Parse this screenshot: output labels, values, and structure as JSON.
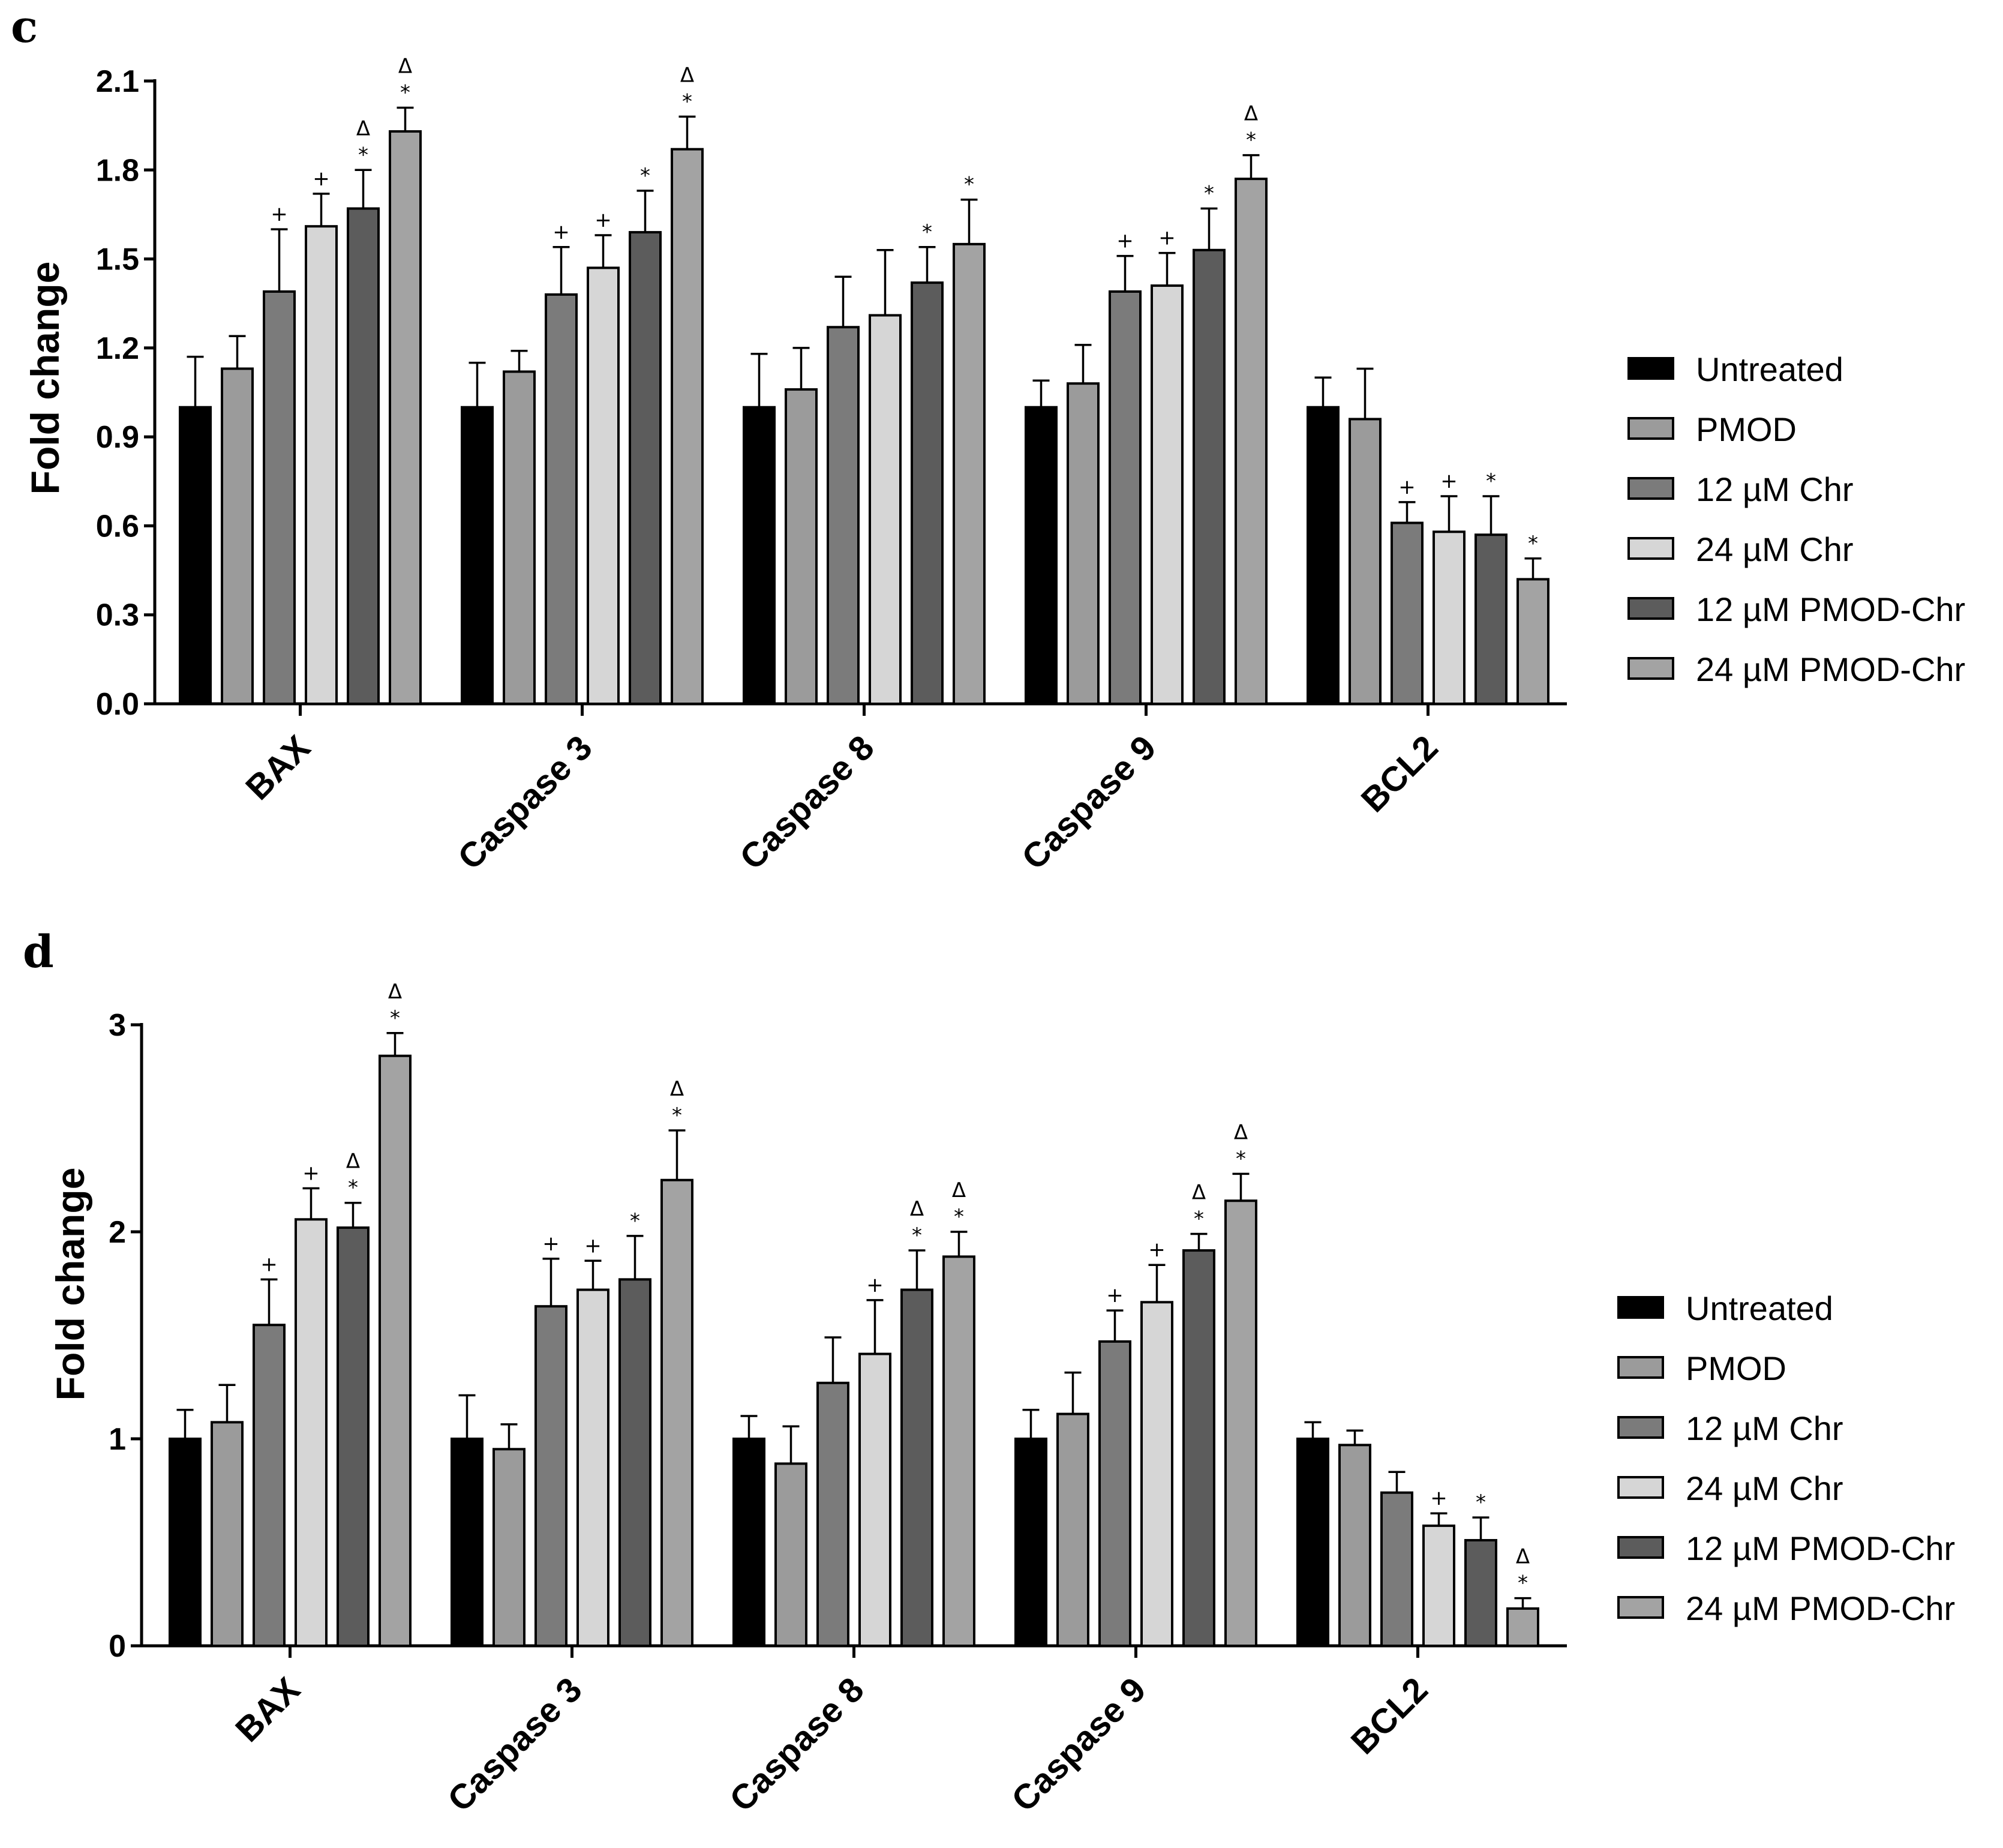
{
  "legend": {
    "entries": [
      "Untreated",
      "PMOD",
      "12 µM Chr",
      "24 µM Chr",
      "12 µM PMOD-Chr",
      "24 µM PMOD-Chr"
    ],
    "colors": [
      "#000000",
      "#9b9b9b",
      "#7b7b7b",
      "#d6d6d6",
      "#5c5c5c",
      "#a3a3a3"
    ]
  },
  "chart_data": [
    {
      "panel_label": "c",
      "type": "bar",
      "ylabel": "Fold change",
      "xlabel": "",
      "ylim": [
        0,
        2.1
      ],
      "yticks": [
        "0.0",
        "0.3",
        "0.6",
        "0.9",
        "1.2",
        "1.5",
        "1.8",
        "2.1"
      ],
      "categories": [
        "BAX",
        "Caspase 3",
        "Caspase 8",
        "Caspase 9",
        "BCL2"
      ],
      "series": [
        {
          "name": "Untreated",
          "values": [
            1.0,
            1.0,
            1.0,
            1.0,
            1.0
          ],
          "errors": [
            0.17,
            0.15,
            0.18,
            0.09,
            0.1
          ],
          "sig": [
            "",
            "",
            "",
            "",
            ""
          ]
        },
        {
          "name": "PMOD",
          "values": [
            1.13,
            1.12,
            1.06,
            1.08,
            0.96
          ],
          "errors": [
            0.11,
            0.07,
            0.14,
            0.13,
            0.17
          ],
          "sig": [
            "",
            "",
            "",
            "",
            ""
          ]
        },
        {
          "name": "12 µM Chr",
          "values": [
            1.39,
            1.38,
            1.27,
            1.39,
            0.61
          ],
          "errors": [
            0.21,
            0.16,
            0.17,
            0.12,
            0.07
          ],
          "sig": [
            "+",
            "+",
            "",
            "+",
            "+"
          ]
        },
        {
          "name": "24 µM Chr",
          "values": [
            1.61,
            1.47,
            1.31,
            1.41,
            0.58
          ],
          "errors": [
            0.11,
            0.11,
            0.22,
            0.11,
            0.12
          ],
          "sig": [
            "+",
            "+",
            "",
            "+",
            "+"
          ]
        },
        {
          "name": "12 µM PMOD-Chr",
          "values": [
            1.67,
            1.59,
            1.42,
            1.53,
            0.57
          ],
          "errors": [
            0.13,
            0.14,
            0.12,
            0.14,
            0.13
          ],
          "sig": [
            "Δ\n*",
            "*",
            "*",
            "*",
            "*"
          ]
        },
        {
          "name": "24 µM PMOD-Chr",
          "values": [
            1.93,
            1.87,
            1.55,
            1.77,
            0.42
          ],
          "errors": [
            0.08,
            0.11,
            0.15,
            0.08,
            0.07
          ],
          "sig": [
            "Δ\n*",
            "Δ\n*",
            "*",
            "Δ\n*",
            "*"
          ]
        }
      ]
    },
    {
      "panel_label": "d",
      "type": "bar",
      "ylabel": "Fold change",
      "xlabel": "",
      "ylim": [
        0,
        3
      ],
      "yticks": [
        "0",
        "1",
        "2",
        "3"
      ],
      "categories": [
        "BAX",
        "Caspase 3",
        "Caspase 8",
        "Caspase 9",
        "BCL2"
      ],
      "series": [
        {
          "name": "Untreated",
          "values": [
            1.0,
            1.0,
            1.0,
            1.0,
            1.0
          ],
          "errors": [
            0.14,
            0.21,
            0.11,
            0.14,
            0.08
          ],
          "sig": [
            "",
            "",
            "",
            "",
            ""
          ]
        },
        {
          "name": "PMOD",
          "values": [
            1.08,
            0.95,
            0.88,
            1.12,
            0.97
          ],
          "errors": [
            0.18,
            0.12,
            0.18,
            0.2,
            0.07
          ],
          "sig": [
            "",
            "",
            "",
            "",
            ""
          ]
        },
        {
          "name": "12 µM Chr",
          "values": [
            1.55,
            1.64,
            1.27,
            1.47,
            0.74
          ],
          "errors": [
            0.22,
            0.23,
            0.22,
            0.15,
            0.1
          ],
          "sig": [
            "+",
            "+",
            "",
            "+",
            ""
          ]
        },
        {
          "name": "24 µM Chr",
          "values": [
            2.06,
            1.72,
            1.41,
            1.66,
            0.58
          ],
          "errors": [
            0.15,
            0.14,
            0.26,
            0.18,
            0.06
          ],
          "sig": [
            "+",
            "+",
            "+",
            "+",
            "+"
          ]
        },
        {
          "name": "12 µM PMOD-Chr",
          "values": [
            2.02,
            1.77,
            1.72,
            1.91,
            0.51
          ],
          "errors": [
            0.12,
            0.21,
            0.19,
            0.08,
            0.11
          ],
          "sig": [
            "Δ\n*",
            "*",
            "Δ\n*",
            "Δ\n*",
            "*"
          ]
        },
        {
          "name": "24 µM PMOD-Chr",
          "values": [
            2.85,
            2.25,
            1.88,
            2.15,
            0.18
          ],
          "errors": [
            0.11,
            0.24,
            0.12,
            0.13,
            0.05
          ],
          "sig": [
            "Δ\n*",
            "Δ\n*",
            "Δ\n*",
            "Δ\n*",
            "Δ\n*"
          ]
        }
      ]
    }
  ]
}
